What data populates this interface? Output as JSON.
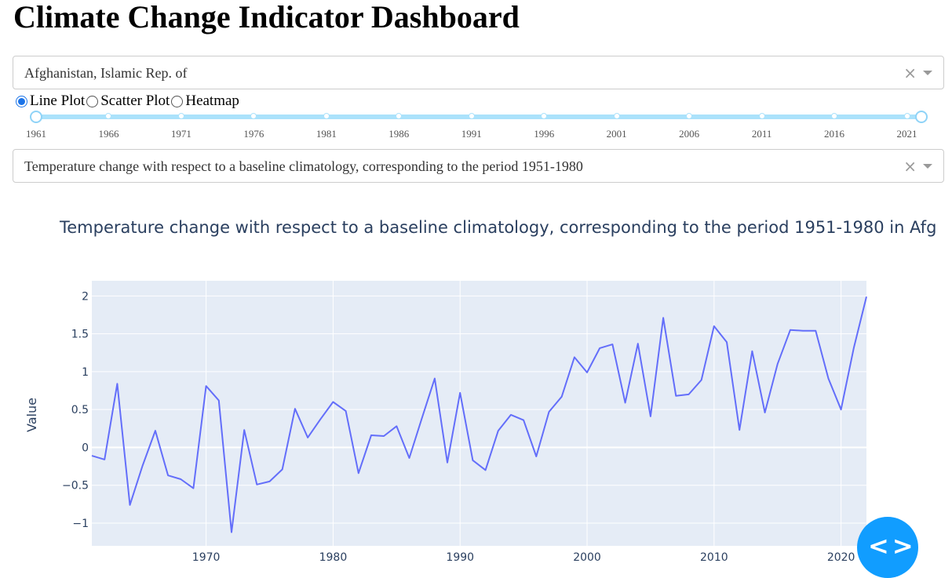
{
  "title": "Climate Change Indicator Dashboard",
  "country_dropdown": {
    "value": "Afghanistan, Islamic Rep. of",
    "clear": "×"
  },
  "plot_type": {
    "options": [
      "Line Plot",
      "Scatter Plot",
      "Heatmap"
    ],
    "selected": "Line Plot"
  },
  "year_slider": {
    "marks": [
      "1961",
      "1966",
      "1971",
      "1976",
      "1981",
      "1986",
      "1991",
      "1996",
      "2001",
      "2006",
      "2011",
      "2016",
      "2021"
    ],
    "min": 1961,
    "max": 2022,
    "range": [
      1961,
      2022
    ]
  },
  "indicator_dropdown": {
    "value": "Temperature change with respect to a baseline climatology, corresponding to the period 1951-1980",
    "clear": "×"
  },
  "chart_data": {
    "type": "line",
    "title": "Temperature change with respect to a baseline climatology, corresponding to the period 1951-1980 in Afg",
    "xlabel": "",
    "ylabel": "Value",
    "x_ticks": [
      "1970",
      "1980",
      "1990",
      "2000",
      "2010",
      "2020"
    ],
    "y_ticks": [
      "2",
      "1.5",
      "1",
      "0.5",
      "0",
      "−0.5",
      "−1"
    ],
    "xlim": [
      1961,
      2022
    ],
    "ylim": [
      -1.3,
      2.2
    ],
    "grid": true,
    "line_color": "#636efa",
    "plot_bg": "#e5ecf6",
    "x": [
      1961,
      1962,
      1963,
      1964,
      1965,
      1966,
      1967,
      1968,
      1969,
      1970,
      1971,
      1972,
      1973,
      1974,
      1975,
      1976,
      1977,
      1978,
      1979,
      1980,
      1981,
      1982,
      1983,
      1984,
      1985,
      1986,
      1987,
      1988,
      1989,
      1990,
      1991,
      1992,
      1993,
      1994,
      1995,
      1996,
      1997,
      1998,
      1999,
      2000,
      2001,
      2002,
      2003,
      2004,
      2005,
      2006,
      2007,
      2008,
      2009,
      2010,
      2011,
      2012,
      2013,
      2014,
      2015,
      2016,
      2017,
      2018,
      2019,
      2020,
      2021,
      2022
    ],
    "values": [
      -0.11,
      -0.16,
      0.84,
      -0.76,
      -0.24,
      0.22,
      -0.37,
      -0.42,
      -0.54,
      0.81,
      0.62,
      -1.12,
      0.23,
      -0.49,
      -0.45,
      -0.29,
      0.51,
      0.13,
      0.37,
      0.6,
      0.48,
      -0.34,
      0.16,
      0.15,
      0.28,
      -0.14,
      0.39,
      0.91,
      -0.2,
      0.72,
      -0.17,
      -0.3,
      0.22,
      0.43,
      0.36,
      -0.12,
      0.47,
      0.67,
      1.19,
      0.99,
      1.31,
      1.36,
      0.59,
      1.37,
      0.41,
      1.71,
      0.68,
      0.7,
      0.89,
      1.6,
      1.39,
      0.23,
      1.27,
      0.46,
      1.1,
      1.55,
      1.54,
      1.54,
      0.91,
      0.5,
      1.31,
      1.99
    ]
  },
  "fab": {
    "icon": "code-arrows-icon",
    "glyph": "<>"
  }
}
